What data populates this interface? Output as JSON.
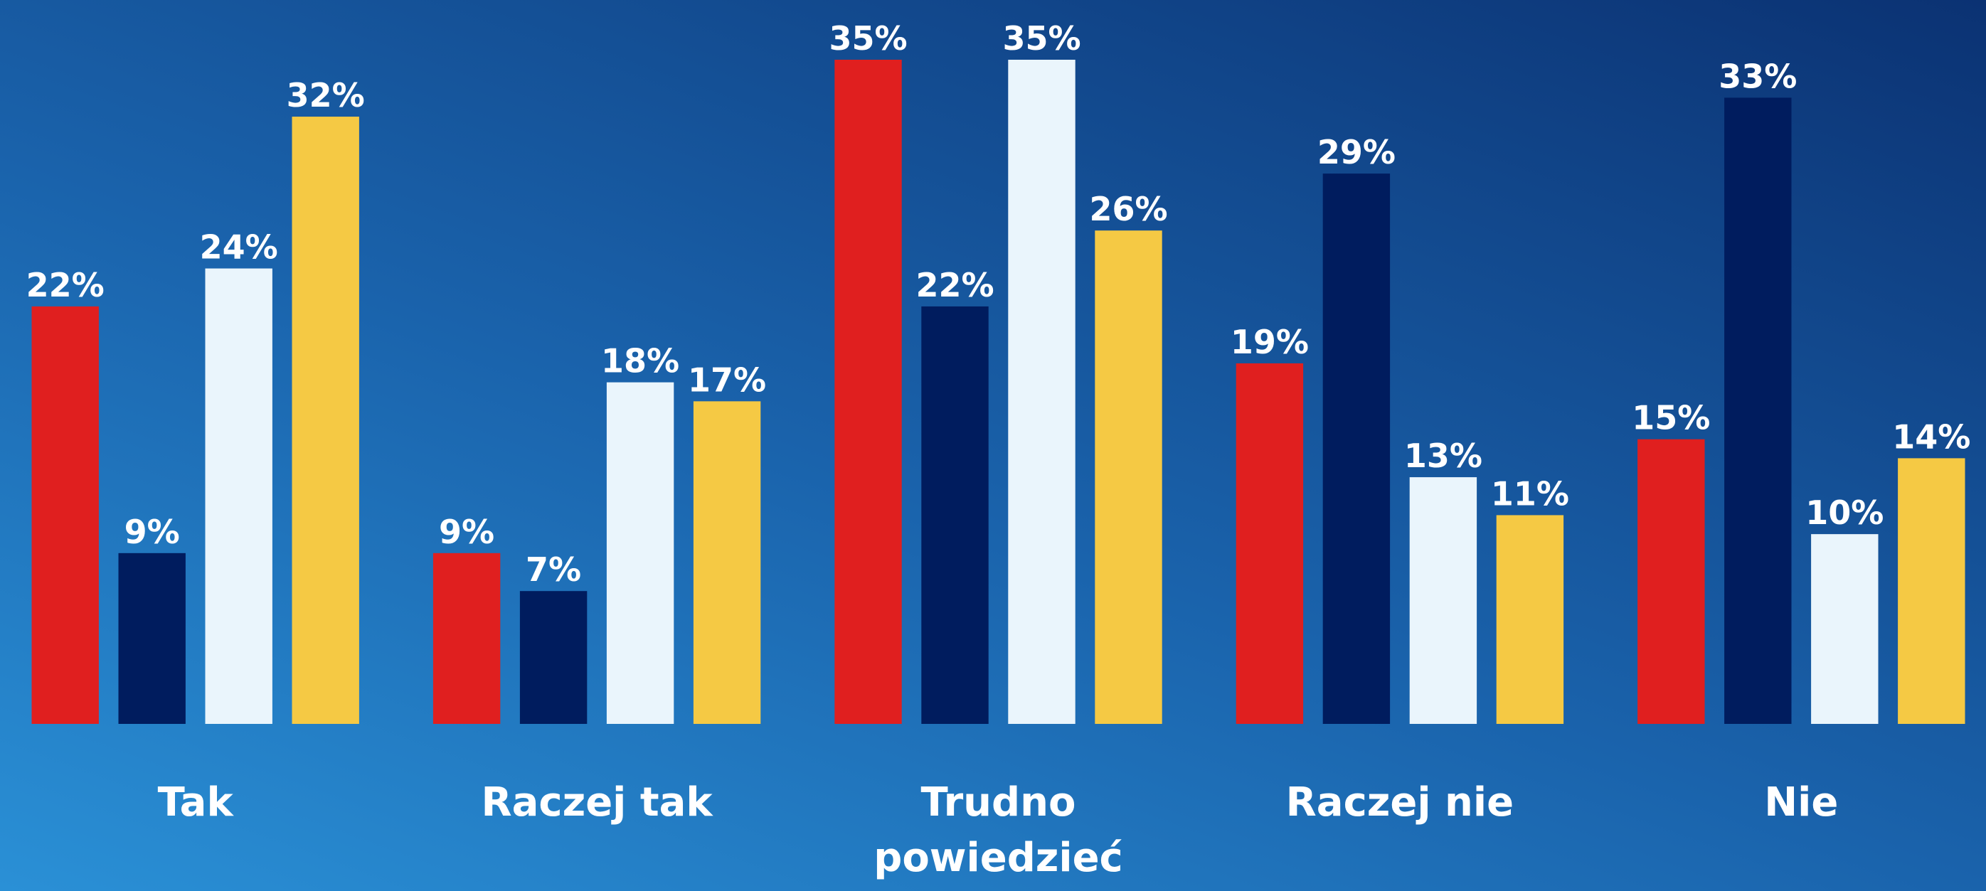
{
  "chart_data": {
    "type": "bar",
    "categories": [
      "Tak",
      "Raczej tak",
      "Trudno powiedzieć",
      "Raczej nie",
      "Nie"
    ],
    "series": [
      {
        "color": "#e01f1f",
        "values": [
          22,
          9,
          35,
          19,
          15
        ],
        "value_labels": [
          "22%",
          "9%",
          "35%",
          "19%",
          "15%"
        ]
      },
      {
        "color": "#001c5e",
        "values": [
          9,
          7,
          22,
          29,
          33
        ],
        "value_labels": [
          "9%",
          "7%",
          "22%",
          "29%",
          "33%"
        ]
      },
      {
        "color": "#eaf5fc",
        "values": [
          24,
          18,
          35,
          13,
          10
        ],
        "value_labels": [
          "24%",
          "18%",
          "35%",
          "13%",
          "10%"
        ]
      },
      {
        "color": "#f5c944",
        "values": [
          32,
          17,
          26,
          11,
          14
        ],
        "value_labels": [
          "32%",
          "17%",
          "26%",
          "11%",
          "14%"
        ]
      }
    ],
    "ylim": [
      0,
      35
    ]
  }
}
